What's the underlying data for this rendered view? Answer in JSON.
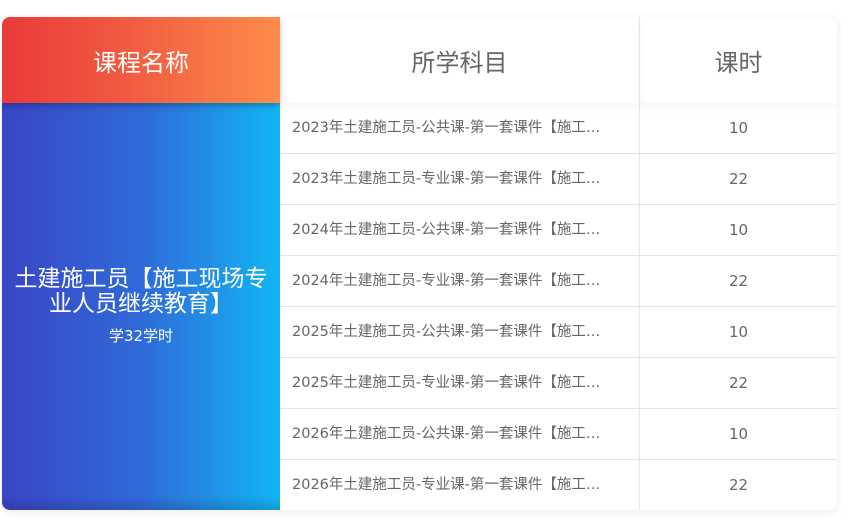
{
  "header": {
    "course_name": "课程名称",
    "subject": "所学科目",
    "hours": "课时"
  },
  "course": {
    "title": "土建施工员【施工现场专业人员继续教育】",
    "summary": "学32学时"
  },
  "rows": [
    {
      "subject": "2023年土建施工员-公共课-第一套课件【施工…",
      "hours": "10"
    },
    {
      "subject": "2023年土建施工员-专业课-第一套课件【施工…",
      "hours": "22"
    },
    {
      "subject": "2024年土建施工员-公共课-第一套课件【施工…",
      "hours": "10"
    },
    {
      "subject": "2024年土建施工员-专业课-第一套课件【施工…",
      "hours": "22"
    },
    {
      "subject": "2025年土建施工员-公共课-第一套课件【施工…",
      "hours": "10"
    },
    {
      "subject": "2025年土建施工员-专业课-第一套课件【施工…",
      "hours": "22"
    },
    {
      "subject": "2026年土建施工员-公共课-第一套课件【施工…",
      "hours": "10"
    },
    {
      "subject": "2026年土建施工员-专业课-第一套课件【施工…",
      "hours": "22"
    }
  ],
  "colors": {
    "header_gradient": [
      "#ea3a3b",
      "#fd8c4b"
    ],
    "body_gradient": [
      "#3a45c6",
      "#12b6f4"
    ]
  }
}
